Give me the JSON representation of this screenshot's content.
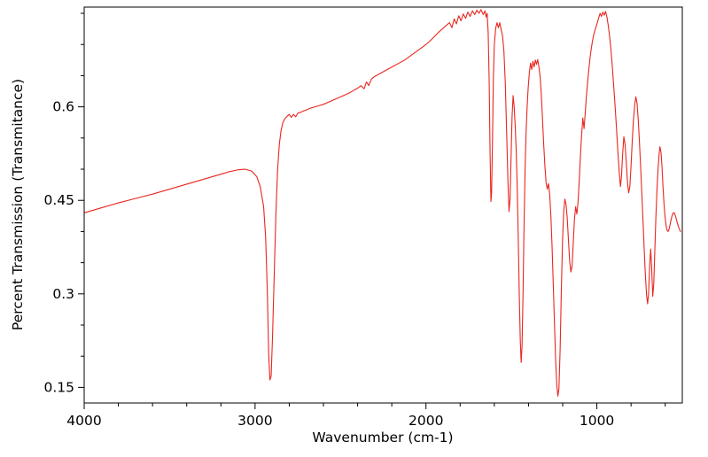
{
  "chart_data": {
    "type": "line",
    "title": "",
    "xlabel": "Wavenumber (cm-1)",
    "ylabel": "Percent Transmission (Transmitance)",
    "background_color": "#ffffff",
    "line_color": "#e8261f",
    "frame_color": "#000000",
    "grid": false,
    "legend": false,
    "x_axis": {
      "min": 500,
      "max": 4000,
      "inverted": true,
      "major_ticks": [
        {
          "value": 4000,
          "label": "4000"
        },
        {
          "value": 3000,
          "label": "3000"
        },
        {
          "value": 2000,
          "label": "2000"
        },
        {
          "value": 1000,
          "label": "1000"
        }
      ],
      "minor_tick_step": 200
    },
    "y_axis": {
      "min": 0.125,
      "max": 0.76,
      "major_ticks": [
        {
          "value": 0.15,
          "label": "0.15"
        },
        {
          "value": 0.3,
          "label": "0.3"
        },
        {
          "value": 0.45,
          "label": "0.45"
        },
        {
          "value": 0.6,
          "label": "0.6"
        }
      ],
      "minor_tick_step": 0.05
    },
    "series": [
      {
        "points": [
          [
            4000,
            0.43
          ],
          [
            3900,
            0.438
          ],
          [
            3800,
            0.446
          ],
          [
            3700,
            0.453
          ],
          [
            3600,
            0.46
          ],
          [
            3500,
            0.468
          ],
          [
            3400,
            0.476
          ],
          [
            3300,
            0.484
          ],
          [
            3200,
            0.492
          ],
          [
            3150,
            0.496
          ],
          [
            3100,
            0.499
          ],
          [
            3060,
            0.5
          ],
          [
            3020,
            0.497
          ],
          [
            2990,
            0.488
          ],
          [
            2970,
            0.472
          ],
          [
            2950,
            0.44
          ],
          [
            2938,
            0.39
          ],
          [
            2928,
            0.3
          ],
          [
            2920,
            0.2
          ],
          [
            2913,
            0.162
          ],
          [
            2906,
            0.168
          ],
          [
            2898,
            0.23
          ],
          [
            2888,
            0.33
          ],
          [
            2878,
            0.43
          ],
          [
            2868,
            0.5
          ],
          [
            2858,
            0.54
          ],
          [
            2848,
            0.562
          ],
          [
            2838,
            0.574
          ],
          [
            2826,
            0.581
          ],
          [
            2812,
            0.585
          ],
          [
            2800,
            0.588
          ],
          [
            2788,
            0.583
          ],
          [
            2775,
            0.588
          ],
          [
            2762,
            0.584
          ],
          [
            2750,
            0.59
          ],
          [
            2735,
            0.591
          ],
          [
            2720,
            0.593
          ],
          [
            2700,
            0.595
          ],
          [
            2675,
            0.598
          ],
          [
            2650,
            0.6
          ],
          [
            2625,
            0.602
          ],
          [
            2600,
            0.604
          ],
          [
            2575,
            0.607
          ],
          [
            2550,
            0.61
          ],
          [
            2525,
            0.613
          ],
          [
            2500,
            0.616
          ],
          [
            2475,
            0.619
          ],
          [
            2450,
            0.622
          ],
          [
            2425,
            0.626
          ],
          [
            2400,
            0.63
          ],
          [
            2380,
            0.634
          ],
          [
            2362,
            0.629
          ],
          [
            2348,
            0.64
          ],
          [
            2335,
            0.634
          ],
          [
            2320,
            0.644
          ],
          [
            2305,
            0.648
          ],
          [
            2285,
            0.651
          ],
          [
            2265,
            0.654
          ],
          [
            2245,
            0.657
          ],
          [
            2225,
            0.66
          ],
          [
            2205,
            0.663
          ],
          [
            2185,
            0.666
          ],
          [
            2165,
            0.669
          ],
          [
            2145,
            0.672
          ],
          [
            2125,
            0.675
          ],
          [
            2105,
            0.679
          ],
          [
            2085,
            0.683
          ],
          [
            2065,
            0.687
          ],
          [
            2045,
            0.691
          ],
          [
            2025,
            0.695
          ],
          [
            2000,
            0.7
          ],
          [
            1975,
            0.706
          ],
          [
            1950,
            0.713
          ],
          [
            1925,
            0.72
          ],
          [
            1900,
            0.726
          ],
          [
            1880,
            0.731
          ],
          [
            1862,
            0.735
          ],
          [
            1848,
            0.727
          ],
          [
            1835,
            0.741
          ],
          [
            1822,
            0.733
          ],
          [
            1808,
            0.746
          ],
          [
            1795,
            0.738
          ],
          [
            1782,
            0.749
          ],
          [
            1768,
            0.742
          ],
          [
            1755,
            0.752
          ],
          [
            1742,
            0.745
          ],
          [
            1728,
            0.754
          ],
          [
            1715,
            0.748
          ],
          [
            1702,
            0.755
          ],
          [
            1690,
            0.75
          ],
          [
            1678,
            0.756
          ],
          [
            1665,
            0.748
          ],
          [
            1655,
            0.754
          ],
          [
            1648,
            0.744
          ],
          [
            1642,
            0.75
          ],
          [
            1636,
            0.72
          ],
          [
            1630,
            0.64
          ],
          [
            1625,
            0.53
          ],
          [
            1620,
            0.448
          ],
          [
            1616,
            0.462
          ],
          [
            1611,
            0.54
          ],
          [
            1606,
            0.64
          ],
          [
            1600,
            0.7
          ],
          [
            1592,
            0.726
          ],
          [
            1584,
            0.735
          ],
          [
            1576,
            0.727
          ],
          [
            1568,
            0.735
          ],
          [
            1560,
            0.724
          ],
          [
            1552,
            0.714
          ],
          [
            1544,
            0.69
          ],
          [
            1536,
            0.64
          ],
          [
            1528,
            0.56
          ],
          [
            1520,
            0.478
          ],
          [
            1514,
            0.432
          ],
          [
            1508,
            0.452
          ],
          [
            1502,
            0.52
          ],
          [
            1496,
            0.585
          ],
          [
            1490,
            0.618
          ],
          [
            1484,
            0.6
          ],
          [
            1478,
            0.57
          ],
          [
            1472,
            0.53
          ],
          [
            1466,
            0.47
          ],
          [
            1460,
            0.39
          ],
          [
            1454,
            0.3
          ],
          [
            1448,
            0.225
          ],
          [
            1443,
            0.19
          ],
          [
            1438,
            0.215
          ],
          [
            1432,
            0.3
          ],
          [
            1426,
            0.41
          ],
          [
            1420,
            0.5
          ],
          [
            1414,
            0.56
          ],
          [
            1408,
            0.6
          ],
          [
            1402,
            0.63
          ],
          [
            1395,
            0.655
          ],
          [
            1388,
            0.67
          ],
          [
            1381,
            0.66
          ],
          [
            1374,
            0.673
          ],
          [
            1367,
            0.664
          ],
          [
            1360,
            0.675
          ],
          [
            1353,
            0.668
          ],
          [
            1346,
            0.676
          ],
          [
            1339,
            0.664
          ],
          [
            1332,
            0.648
          ],
          [
            1325,
            0.62
          ],
          [
            1318,
            0.58
          ],
          [
            1311,
            0.54
          ],
          [
            1304,
            0.505
          ],
          [
            1297,
            0.478
          ],
          [
            1290,
            0.468
          ],
          [
            1283,
            0.477
          ],
          [
            1276,
            0.46
          ],
          [
            1269,
            0.425
          ],
          [
            1262,
            0.375
          ],
          [
            1255,
            0.315
          ],
          [
            1248,
            0.252
          ],
          [
            1241,
            0.192
          ],
          [
            1234,
            0.152
          ],
          [
            1228,
            0.136
          ],
          [
            1222,
            0.148
          ],
          [
            1215,
            0.21
          ],
          [
            1208,
            0.305
          ],
          [
            1201,
            0.385
          ],
          [
            1194,
            0.432
          ],
          [
            1187,
            0.452
          ],
          [
            1180,
            0.443
          ],
          [
            1173,
            0.42
          ],
          [
            1166,
            0.385
          ],
          [
            1159,
            0.352
          ],
          [
            1152,
            0.335
          ],
          [
            1145,
            0.345
          ],
          [
            1138,
            0.382
          ],
          [
            1131,
            0.42
          ],
          [
            1124,
            0.44
          ],
          [
            1117,
            0.428
          ],
          [
            1110,
            0.448
          ],
          [
            1103,
            0.482
          ],
          [
            1096,
            0.522
          ],
          [
            1089,
            0.556
          ],
          [
            1082,
            0.582
          ],
          [
            1075,
            0.565
          ],
          [
            1068,
            0.59
          ],
          [
            1061,
            0.618
          ],
          [
            1054,
            0.64
          ],
          [
            1047,
            0.66
          ],
          [
            1040,
            0.678
          ],
          [
            1033,
            0.693
          ],
          [
            1026,
            0.705
          ],
          [
            1019,
            0.715
          ],
          [
            1012,
            0.722
          ],
          [
            1005,
            0.728
          ],
          [
            997,
            0.735
          ],
          [
            989,
            0.743
          ],
          [
            981,
            0.75
          ],
          [
            973,
            0.745
          ],
          [
            965,
            0.752
          ],
          [
            957,
            0.747
          ],
          [
            949,
            0.753
          ],
          [
            941,
            0.744
          ],
          [
            933,
            0.73
          ],
          [
            925,
            0.712
          ],
          [
            917,
            0.69
          ],
          [
            909,
            0.663
          ],
          [
            901,
            0.632
          ],
          [
            893,
            0.6
          ],
          [
            885,
            0.565
          ],
          [
            877,
            0.528
          ],
          [
            869,
            0.495
          ],
          [
            862,
            0.472
          ],
          [
            856,
            0.488
          ],
          [
            849,
            0.525
          ],
          [
            842,
            0.552
          ],
          [
            835,
            0.54
          ],
          [
            828,
            0.512
          ],
          [
            821,
            0.48
          ],
          [
            814,
            0.462
          ],
          [
            807,
            0.472
          ],
          [
            800,
            0.505
          ],
          [
            793,
            0.545
          ],
          [
            786,
            0.578
          ],
          [
            779,
            0.602
          ],
          [
            772,
            0.616
          ],
          [
            765,
            0.606
          ],
          [
            758,
            0.58
          ],
          [
            751,
            0.545
          ],
          [
            744,
            0.505
          ],
          [
            737,
            0.462
          ],
          [
            730,
            0.418
          ],
          [
            723,
            0.372
          ],
          [
            716,
            0.33
          ],
          [
            709,
            0.298
          ],
          [
            703,
            0.284
          ],
          [
            697,
            0.302
          ],
          [
            691,
            0.345
          ],
          [
            685,
            0.372
          ],
          [
            679,
            0.34
          ],
          [
            673,
            0.296
          ],
          [
            667,
            0.316
          ],
          [
            661,
            0.368
          ],
          [
            655,
            0.42
          ],
          [
            649,
            0.462
          ],
          [
            643,
            0.495
          ],
          [
            637,
            0.52
          ],
          [
            631,
            0.536
          ],
          [
            625,
            0.528
          ],
          [
            619,
            0.505
          ],
          [
            613,
            0.472
          ],
          [
            607,
            0.444
          ],
          [
            601,
            0.424
          ],
          [
            595,
            0.41
          ],
          [
            589,
            0.402
          ],
          [
            583,
            0.4
          ],
          [
            577,
            0.404
          ],
          [
            571,
            0.412
          ],
          [
            565,
            0.42
          ],
          [
            559,
            0.426
          ],
          [
            553,
            0.43
          ],
          [
            547,
            0.43
          ],
          [
            541,
            0.426
          ],
          [
            535,
            0.42
          ],
          [
            529,
            0.414
          ],
          [
            523,
            0.408
          ],
          [
            517,
            0.404
          ],
          [
            511,
            0.4
          ]
        ]
      }
    ]
  }
}
